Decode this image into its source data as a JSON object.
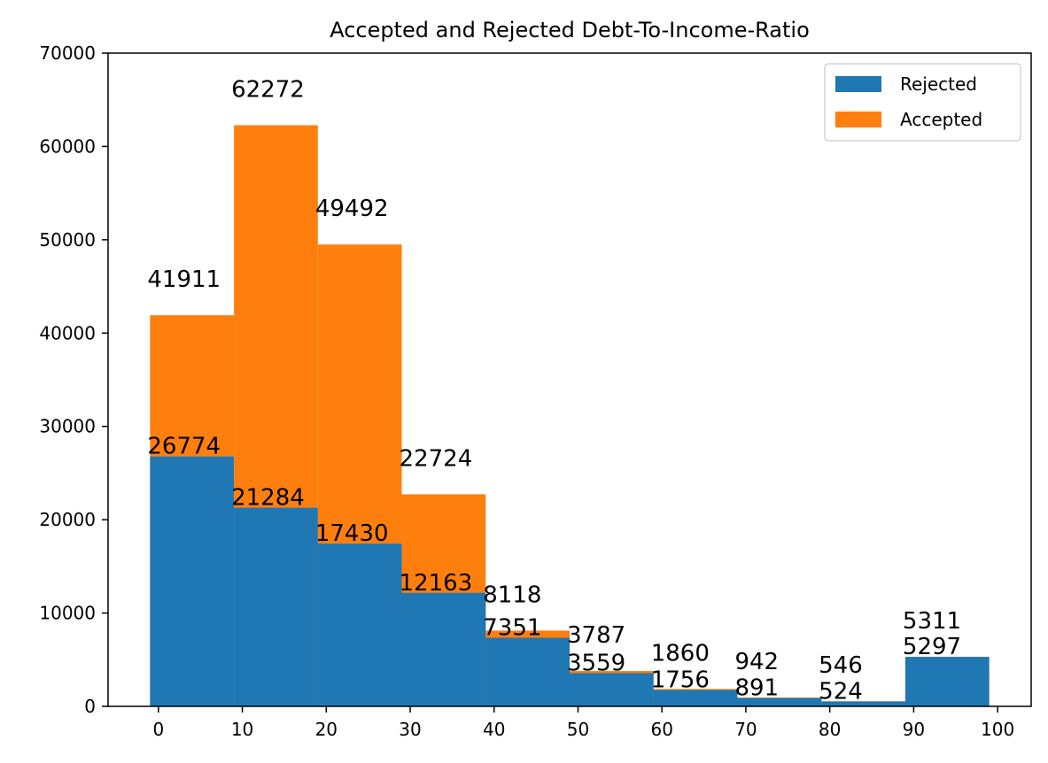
{
  "chart_data": {
    "type": "bar",
    "stacked": true,
    "title": "Accepted and Rejected Debt-To-Income-Ratio",
    "xlabel": "",
    "ylabel": "",
    "bins": [
      {
        "start": -1,
        "end": 9
      },
      {
        "start": 9,
        "end": 19
      },
      {
        "start": 19,
        "end": 29
      },
      {
        "start": 29,
        "end": 39
      },
      {
        "start": 39,
        "end": 49
      },
      {
        "start": 49,
        "end": 59
      },
      {
        "start": 59,
        "end": 69
      },
      {
        "start": 69,
        "end": 79
      },
      {
        "start": 79,
        "end": 89
      },
      {
        "start": 89,
        "end": 99
      }
    ],
    "series": [
      {
        "name": "Rejected",
        "color": "#1f77b4",
        "values": [
          26774,
          21284,
          17430,
          12163,
          7351,
          3559,
          1756,
          891,
          524,
          5297
        ]
      },
      {
        "name": "Accepted",
        "color": "#ff7f0e",
        "totals": [
          41911,
          62272,
          49492,
          22724,
          8118,
          3787,
          1860,
          942,
          546,
          5311
        ]
      }
    ],
    "xlim": [
      -6,
      104
    ],
    "ylim": [
      0,
      70000
    ],
    "xticks": [
      "0",
      "10",
      "20",
      "30",
      "40",
      "50",
      "60",
      "70",
      "80",
      "90",
      "100"
    ],
    "xtick_values": [
      0,
      10,
      20,
      30,
      40,
      50,
      60,
      70,
      80,
      90,
      100
    ],
    "yticks": [
      "0",
      "10000",
      "20000",
      "30000",
      "40000",
      "50000",
      "60000",
      "70000"
    ],
    "ytick_values": [
      0,
      10000,
      20000,
      30000,
      40000,
      50000,
      60000,
      70000
    ],
    "legend": {
      "position": "top-right",
      "entries": [
        "Rejected",
        "Accepted"
      ]
    },
    "grid": false
  }
}
